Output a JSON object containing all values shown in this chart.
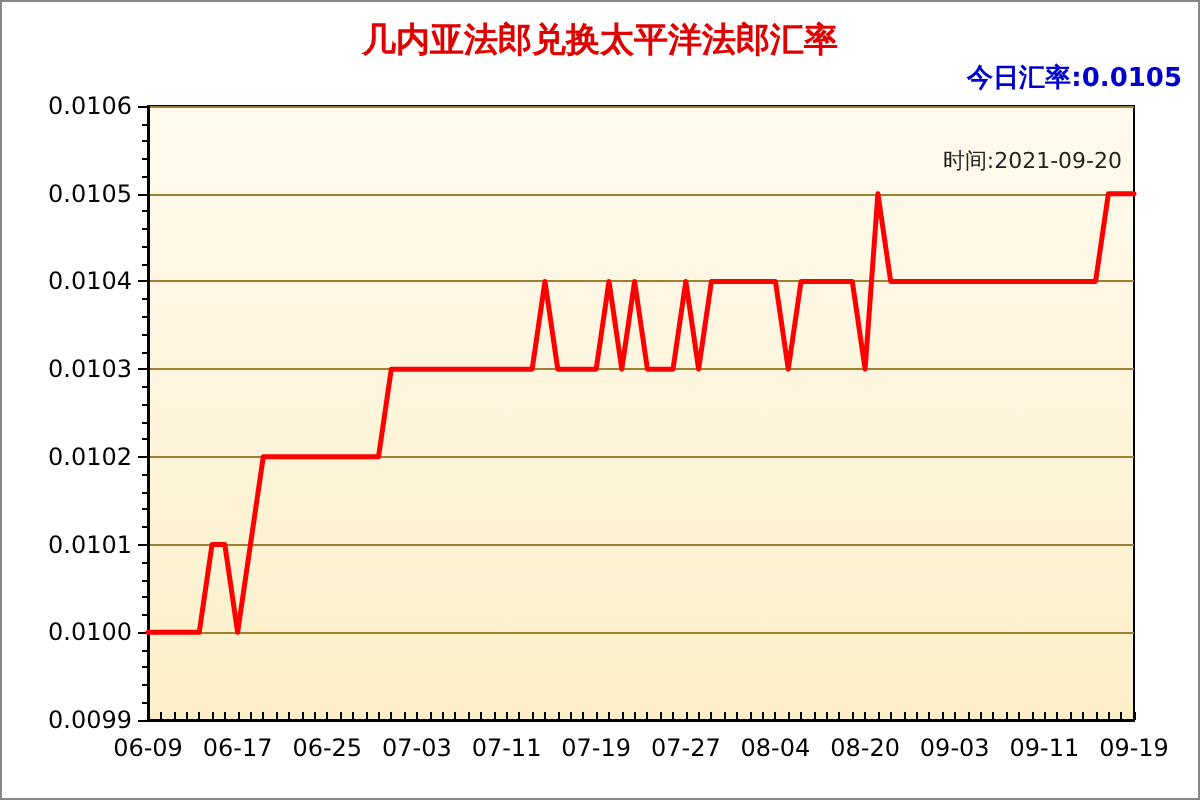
{
  "chart_data": {
    "type": "line",
    "title": "几内亚法郎兑换太平洋法郎汇率",
    "annotations": [
      "今日汇率:0.0105",
      "时间:2021-09-20"
    ],
    "categories": [
      "06-09",
      null,
      null,
      null,
      null,
      null,
      null,
      "06-17",
      null,
      null,
      null,
      null,
      null,
      null,
      "06-25",
      null,
      null,
      null,
      null,
      null,
      null,
      "07-03",
      null,
      null,
      null,
      null,
      null,
      null,
      "07-11",
      null,
      null,
      null,
      null,
      null,
      null,
      "07-19",
      null,
      null,
      null,
      null,
      null,
      null,
      "07-27",
      null,
      null,
      null,
      null,
      null,
      null,
      "08-04",
      null,
      null,
      null,
      null,
      null,
      null,
      "08-20",
      null,
      null,
      null,
      null,
      null,
      null,
      "09-03",
      null,
      null,
      null,
      null,
      null,
      null,
      "09-11",
      null,
      null,
      null,
      null,
      null,
      null,
      "09-19"
    ],
    "series": [
      {
        "color": "#ff0000",
        "values": [
          0.01,
          0.01,
          0.01,
          0.01,
          0.01,
          0.0101,
          0.0101,
          0.01,
          0.0101,
          0.0102,
          0.0102,
          0.0102,
          0.0102,
          0.0102,
          0.0102,
          0.0102,
          0.0102,
          0.0102,
          0.0102,
          0.0103,
          0.0103,
          0.0103,
          0.0103,
          0.0103,
          0.0103,
          0.0103,
          0.0103,
          0.0103,
          0.0103,
          0.0103,
          0.0103,
          0.0104,
          0.0103,
          0.0103,
          0.0103,
          0.0103,
          0.0104,
          0.0103,
          0.0104,
          0.0103,
          0.0103,
          0.0103,
          0.0104,
          0.0103,
          0.0104,
          0.0104,
          0.0104,
          0.0104,
          0.0104,
          0.0104,
          0.0103,
          0.0104,
          0.0104,
          0.0104,
          0.0104,
          0.0104,
          0.0103,
          0.0105,
          0.0104,
          0.0104,
          0.0104,
          0.0104,
          0.0104,
          0.0104,
          0.0104,
          0.0104,
          0.0104,
          0.0104,
          0.0104,
          0.0104,
          0.0104,
          0.0104,
          0.0104,
          0.0104,
          0.0104,
          0.0105,
          0.0105,
          0.0105
        ]
      }
    ],
    "ylim": [
      0.0099,
      0.0106
    ],
    "yticks": [
      {
        "value": 0.0099,
        "label": "0.0099"
      },
      {
        "value": 0.01,
        "label": "0.0100"
      },
      {
        "value": 0.0101,
        "label": "0.0101"
      },
      {
        "value": 0.0102,
        "label": "0.0102"
      },
      {
        "value": 0.0103,
        "label": "0.0103"
      },
      {
        "value": 0.0104,
        "label": "0.0104"
      },
      {
        "value": 0.0105,
        "label": "0.0105"
      },
      {
        "value": 0.0106,
        "label": "0.0106"
      }
    ],
    "grid": "y",
    "marker": "none",
    "line_style": "solid"
  }
}
